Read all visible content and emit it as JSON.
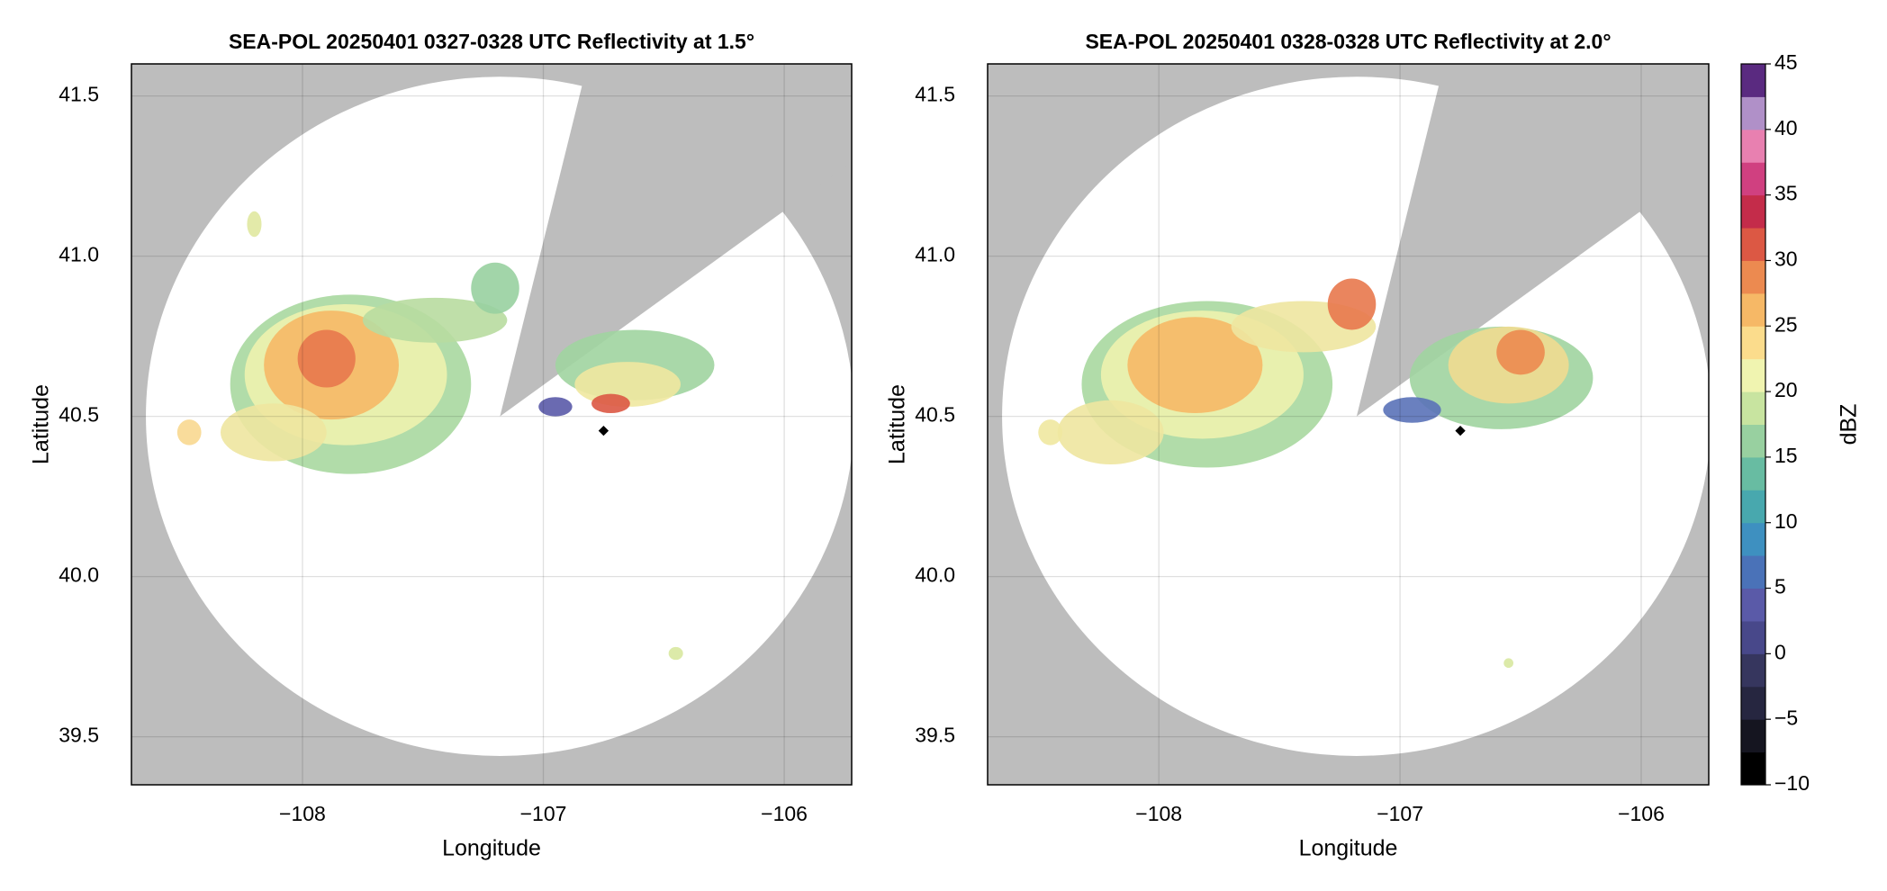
{
  "chart_data": [
    {
      "type": "radar-ppi",
      "title": "SEA-POL 20250401 0327-0328 UTC Reflectivity at 1.5°",
      "xlabel": "Longitude",
      "ylabel": "Latitude",
      "xlim": [
        -108.71,
        -105.72
      ],
      "ylim": [
        39.35,
        41.6
      ],
      "xticks": [
        {
          "value": -108,
          "label": "−108"
        },
        {
          "value": -107,
          "label": "−107"
        },
        {
          "value": -106,
          "label": "−106"
        }
      ],
      "yticks": [
        39.5,
        {
          "value": 40,
          "label": "40.0"
        },
        40.5,
        {
          "value": 41,
          "label": "41.0"
        },
        41.5
      ],
      "grid": true
    },
    {
      "type": "radar-ppi",
      "title": "SEA-POL 20250401 0328-0328 UTC Reflectivity at 2.0°",
      "xlabel": "Longitude",
      "ylabel": "Latitude",
      "xlim": [
        -108.71,
        -105.72
      ],
      "ylim": [
        39.35,
        41.6
      ],
      "xticks": [
        {
          "value": -108,
          "label": "−108"
        },
        {
          "value": -107,
          "label": "−107"
        },
        {
          "value": -106,
          "label": "−106"
        }
      ],
      "yticks": [
        39.5,
        {
          "value": 40,
          "label": "40.0"
        },
        40.5,
        {
          "value": 41,
          "label": "41.0"
        },
        41.5
      ],
      "grid": true,
      "colorbar": {
        "label": "dBZ",
        "lim": [
          -10,
          45
        ],
        "ticks": [
          {
            "value": -10,
            "label": "−10"
          },
          {
            "value": -5,
            "label": "−5"
          },
          0,
          5,
          10,
          15,
          20,
          25,
          30,
          35,
          40,
          45
        ],
        "colors": [
          "#000000",
          "#151520",
          "#262640",
          "#36365e",
          "#48488a",
          "#5a5aa8",
          "#4a72b8",
          "#3e90c0",
          "#48a8ae",
          "#68bca2",
          "#98d0a0",
          "#c8e4a0",
          "#f0f4b0",
          "#fbdc8c",
          "#f6b866",
          "#ec8a50",
          "#dc5844",
          "#c42c4a",
          "#d04080",
          "#e880b0",
          "#b090c8",
          "#5a2a80"
        ]
      }
    }
  ]
}
